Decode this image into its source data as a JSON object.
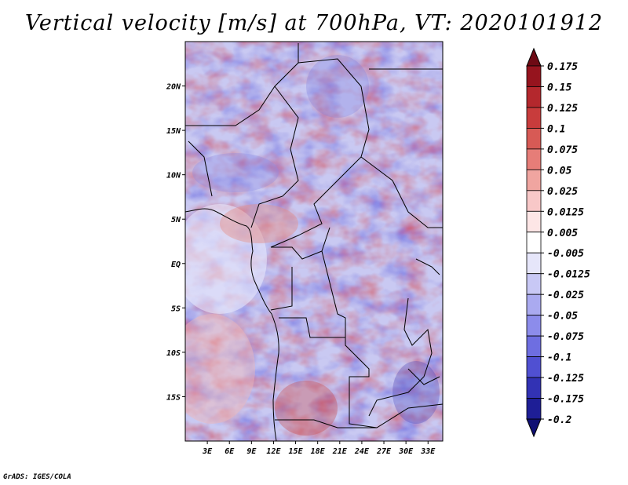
{
  "title": "Vertical velocity [m/s] at 700hPa, VT: 2020101912",
  "footer": "GrADS: IGES/COLA",
  "map": {
    "lon_ticks": [
      "3E",
      "6E",
      "9E",
      "12E",
      "15E",
      "18E",
      "21E",
      "24E",
      "27E",
      "30E",
      "33E"
    ],
    "lat_ticks": [
      "20N",
      "15N",
      "10N",
      "5N",
      "EQ",
      "5S",
      "10S",
      "15S"
    ],
    "lon_range": [
      0,
      35
    ],
    "lat_range": [
      -20,
      25
    ]
  },
  "colorbar": {
    "labels": [
      "0.175",
      "0.15",
      "0.125",
      "0.1",
      "0.075",
      "0.05",
      "0.025",
      "0.0125",
      "0.005",
      "-0.005",
      "-0.0125",
      "-0.025",
      "-0.05",
      "-0.075",
      "-0.1",
      "-0.125",
      "-0.175",
      "-0.2"
    ],
    "colors": [
      "#6e0a14",
      "#96141e",
      "#b4282d",
      "#c83c3c",
      "#d75a55",
      "#e67d78",
      "#f0a5a0",
      "#f8c8c8",
      "#fde6e6",
      "#ffffff",
      "#e6e6fa",
      "#c8c8f5",
      "#aaaaf0",
      "#8c8ceb",
      "#6e6ee1",
      "#5050d2",
      "#3232b4",
      "#1e1e96",
      "#0f0f73"
    ]
  }
}
